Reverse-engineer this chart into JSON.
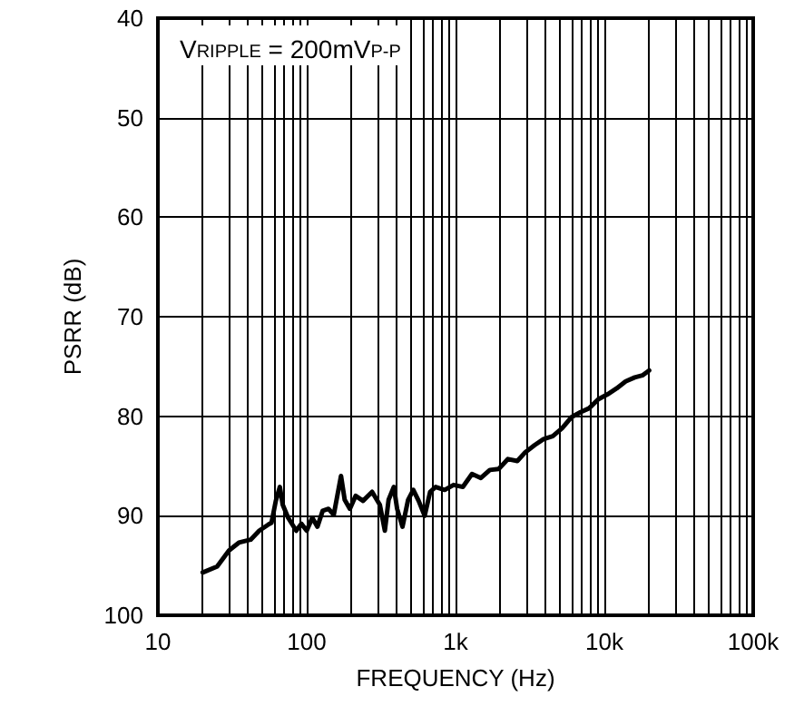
{
  "chart_data": {
    "type": "line",
    "xlabel": "FREQUENCY (Hz)",
    "ylabel": "PSRR (dB)",
    "annotations": [
      "V$_{RIPPLE}$ = 200mV$_{P-P}$"
    ],
    "log": "x",
    "grid": true,
    "marker": "none",
    "line_style": "solid",
    "xlim": [
      10,
      100000
    ],
    "ylim": [
      100,
      40
    ],
    "xticks": [
      10,
      {
        "value": 20,
        "label": null
      },
      {
        "value": 30,
        "label": null
      },
      {
        "value": 40,
        "label": null
      },
      {
        "value": 50,
        "label": null
      },
      {
        "value": 60,
        "label": null
      },
      {
        "value": 70,
        "label": null
      },
      {
        "value": 80,
        "label": null
      },
      {
        "value": 90,
        "label": null
      },
      100,
      {
        "value": 200,
        "label": null
      },
      {
        "value": 300,
        "label": null
      },
      {
        "value": 400,
        "label": null
      },
      {
        "value": 500,
        "label": null
      },
      {
        "value": 600,
        "label": null
      },
      {
        "value": 700,
        "label": null
      },
      {
        "value": 800,
        "label": null
      },
      {
        "value": 900,
        "label": null
      },
      {
        "value": 1000,
        "label": "1k"
      },
      {
        "value": 2000,
        "label": null
      },
      {
        "value": 3000,
        "label": null
      },
      {
        "value": 4000,
        "label": null
      },
      {
        "value": 5000,
        "label": null
      },
      {
        "value": 6000,
        "label": null
      },
      {
        "value": 7000,
        "label": null
      },
      {
        "value": 8000,
        "label": null
      },
      {
        "value": 9000,
        "label": null
      },
      {
        "value": 10000,
        "label": "10k"
      },
      {
        "value": 20000,
        "label": null
      },
      {
        "value": 30000,
        "label": null
      },
      {
        "value": 40000,
        "label": null
      },
      {
        "value": 50000,
        "label": null
      },
      {
        "value": 60000,
        "label": null
      },
      {
        "value": 70000,
        "label": null
      },
      {
        "value": 80000,
        "label": null
      },
      {
        "value": 90000,
        "label": null
      },
      {
        "value": 100000,
        "label": "100k"
      }
    ],
    "yticks": [
      40,
      50,
      60,
      70,
      80,
      90,
      100
    ],
    "series": [
      {
        "color": "#000000",
        "x": [
          20,
          25,
          30,
          35,
          42,
          48,
          55,
          58,
          62,
          66,
          69,
          75,
          85,
          92,
          100,
          109,
          118,
          128,
          140,
          152,
          170,
          180,
          195,
          213,
          239,
          275,
          310,
          335,
          355,
          385,
          405,
          440,
          480,
          520,
          565,
          620,
          675,
          735,
          845,
          970,
          1120,
          1290,
          1480,
          1700,
          1950,
          2250,
          2600,
          2950,
          3400,
          3900,
          4500,
          5200,
          6000,
          6900,
          7900,
          9100,
          10500,
          12100,
          13900,
          16000,
          18000,
          20000
        ],
        "values": [
          95.7,
          95.1,
          93.5,
          92.7,
          92.4,
          91.5,
          90.9,
          90.7,
          88.5,
          87.1,
          88.9,
          90.2,
          91.5,
          90.8,
          91.5,
          90.2,
          91.1,
          89.5,
          89.3,
          89.9,
          86.0,
          88.4,
          89.3,
          88.0,
          88.5,
          87.6,
          88.9,
          91.5,
          88.4,
          87.1,
          89.3,
          91.1,
          88.4,
          87.4,
          88.5,
          90.0,
          87.6,
          87.1,
          87.4,
          86.9,
          87.1,
          85.8,
          86.2,
          85.4,
          85.3,
          84.3,
          84.5,
          83.6,
          82.9,
          82.3,
          82.0,
          81.2,
          80.1,
          79.6,
          79.2,
          78.3,
          77.8,
          77.2,
          76.5,
          76.1,
          75.9,
          75.4
        ]
      }
    ]
  }
}
